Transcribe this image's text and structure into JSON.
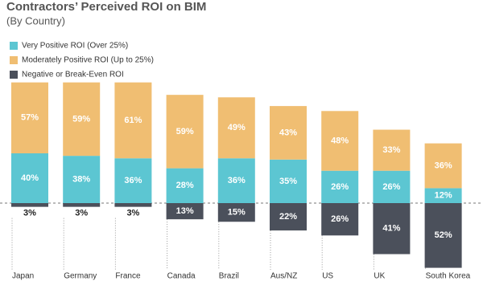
{
  "chart_data": {
    "type": "bar",
    "title": "Contractors’ Perceived ROI on BIM",
    "subtitle": "(By Country)",
    "categories": [
      "Japan",
      "Germany",
      "France",
      "Canada",
      "Brazil",
      "Aus/NZ",
      "US",
      "UK",
      "South Korea"
    ],
    "series": [
      {
        "name": "Very Positive ROI (Over 25%)",
        "color": "#5cc6d2",
        "values": [
          40,
          38,
          36,
          28,
          36,
          35,
          26,
          26,
          12
        ],
        "value_labels": [
          "40%",
          "38%",
          "36%",
          "28%",
          "36%",
          "35%",
          "26%",
          "26%",
          "12%"
        ]
      },
      {
        "name": "Moderately Positive ROI (Up to 25%)",
        "color": "#f0be72",
        "values": [
          57,
          59,
          61,
          59,
          49,
          43,
          48,
          33,
          36
        ],
        "value_labels": [
          "57%",
          "59%",
          "61%",
          "59%",
          "49%",
          "43%",
          "48%",
          "33%",
          "36%"
        ]
      },
      {
        "name": "Negative or Break-Even ROI",
        "color": "#4b505b",
        "values": [
          3,
          3,
          3,
          13,
          15,
          22,
          26,
          41,
          52
        ],
        "value_labels": [
          "3%",
          "3%",
          "3%",
          "13%",
          "15%",
          "22%",
          "26%",
          "41%",
          "52%"
        ]
      }
    ]
  }
}
